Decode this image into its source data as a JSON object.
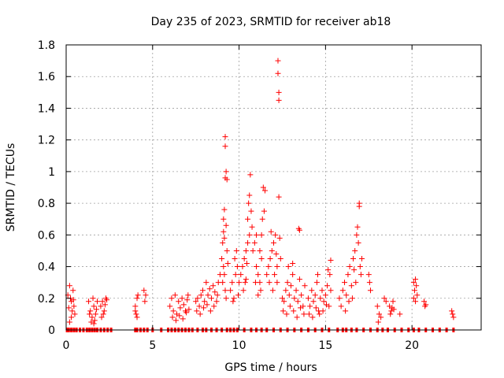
{
  "chart_data": {
    "type": "scatter",
    "title": "Day 235 of 2023, SRMTID for receiver ab18",
    "xlabel": "GPS time / hours",
    "ylabel": "SRMTID / TECUs",
    "xlim": [
      0,
      24
    ],
    "ylim": [
      0,
      1.8
    ],
    "x_ticks": [
      0,
      5,
      10,
      15,
      20
    ],
    "x_tick_labels": [
      "0",
      "5",
      "10",
      "15",
      "20"
    ],
    "y_ticks": [
      0,
      0.2,
      0.4,
      0.6,
      0.8,
      1.0,
      1.2,
      1.4,
      1.6,
      1.8
    ],
    "y_tick_labels": [
      "0",
      "0.2",
      "0.4",
      "0.6",
      "0.8",
      "1",
      "1.2",
      "1.4",
      "1.6",
      "1.8"
    ],
    "grid": true,
    "marker": "plus",
    "color": "#ff0000",
    "points": [
      [
        0.1,
        0.22
      ],
      [
        0.2,
        0.28
      ],
      [
        0.3,
        0.18
      ],
      [
        0.35,
        0.12
      ],
      [
        0.4,
        0.25
      ],
      [
        0.45,
        0.15
      ],
      [
        0.5,
        0.1
      ],
      [
        0.3,
        0.08
      ],
      [
        0.25,
        0.2
      ],
      [
        0.15,
        0.14
      ],
      [
        0.42,
        0.19
      ],
      [
        0.2,
        0.05
      ],
      [
        1.3,
        0.18
      ],
      [
        1.4,
        0.12
      ],
      [
        1.5,
        0.08
      ],
      [
        1.6,
        0.15
      ],
      [
        1.7,
        0.1
      ],
      [
        1.45,
        0.05
      ],
      [
        1.55,
        0.2
      ],
      [
        1.65,
        0.06
      ],
      [
        1.35,
        0.1
      ],
      [
        1.75,
        0.13
      ],
      [
        1.8,
        0.18
      ],
      [
        1.6,
        0.04
      ],
      [
        2.0,
        0.15
      ],
      [
        2.1,
        0.18
      ],
      [
        2.2,
        0.12
      ],
      [
        2.3,
        0.2
      ],
      [
        2.15,
        0.1
      ],
      [
        2.25,
        0.16
      ],
      [
        2.05,
        0.08
      ],
      [
        2.35,
        0.19
      ],
      [
        4.0,
        0.15
      ],
      [
        4.1,
        0.2
      ],
      [
        4.05,
        0.1
      ],
      [
        4.15,
        0.22
      ],
      [
        4.0,
        0.12
      ],
      [
        4.1,
        0.08
      ],
      [
        4.5,
        0.25
      ],
      [
        4.6,
        0.22
      ],
      [
        4.55,
        0.18
      ],
      [
        6.0,
        0.15
      ],
      [
        6.1,
        0.2
      ],
      [
        6.2,
        0.12
      ],
      [
        6.3,
        0.22
      ],
      [
        6.4,
        0.1
      ],
      [
        6.5,
        0.18
      ],
      [
        6.6,
        0.14
      ],
      [
        6.7,
        0.2
      ],
      [
        6.8,
        0.16
      ],
      [
        6.9,
        0.12
      ],
      [
        7.0,
        0.19
      ],
      [
        7.1,
        0.13
      ],
      [
        6.15,
        0.08
      ],
      [
        6.35,
        0.06
      ],
      [
        6.55,
        0.09
      ],
      [
        6.75,
        0.07
      ],
      [
        6.95,
        0.11
      ],
      [
        7.05,
        0.22
      ],
      [
        7.5,
        0.18
      ],
      [
        7.6,
        0.2
      ],
      [
        7.7,
        0.15
      ],
      [
        7.8,
        0.22
      ],
      [
        7.9,
        0.25
      ],
      [
        8.0,
        0.18
      ],
      [
        8.1,
        0.3
      ],
      [
        8.2,
        0.22
      ],
      [
        8.3,
        0.26
      ],
      [
        8.4,
        0.2
      ],
      [
        8.5,
        0.28
      ],
      [
        8.6,
        0.24
      ],
      [
        8.7,
        0.18
      ],
      [
        8.8,
        0.3
      ],
      [
        7.55,
        0.12
      ],
      [
        7.75,
        0.1
      ],
      [
        7.95,
        0.14
      ],
      [
        8.15,
        0.16
      ],
      [
        8.35,
        0.12
      ],
      [
        8.55,
        0.15
      ],
      [
        8.75,
        0.22
      ],
      [
        8.9,
        0.35
      ],
      [
        9.0,
        0.45
      ],
      [
        9.05,
        0.55
      ],
      [
        9.1,
        0.62
      ],
      [
        9.15,
        0.76
      ],
      [
        9.2,
        0.96
      ],
      [
        9.25,
        1.0
      ],
      [
        9.2,
        1.16
      ],
      [
        9.2,
        1.22
      ],
      [
        9.3,
        0.95
      ],
      [
        9.1,
        0.4
      ],
      [
        9.05,
        0.3
      ],
      [
        9.15,
        0.35
      ],
      [
        9.2,
        0.25
      ],
      [
        9.25,
        0.2
      ],
      [
        9.3,
        0.5
      ],
      [
        9.35,
        0.42
      ],
      [
        9.1,
        0.7
      ],
      [
        9.15,
        0.58
      ],
      [
        9.25,
        0.66
      ],
      [
        9.5,
        0.25
      ],
      [
        9.6,
        0.3
      ],
      [
        9.7,
        0.2
      ],
      [
        9.8,
        0.35
      ],
      [
        9.9,
        0.4
      ],
      [
        10.0,
        0.3
      ],
      [
        9.75,
        0.45
      ],
      [
        9.85,
        0.5
      ],
      [
        9.65,
        0.18
      ],
      [
        9.95,
        0.22
      ],
      [
        10.1,
        0.35
      ],
      [
        10.2,
        0.4
      ],
      [
        10.3,
        0.45
      ],
      [
        10.4,
        0.5
      ],
      [
        10.5,
        0.7
      ],
      [
        10.55,
        0.8
      ],
      [
        10.6,
        0.85
      ],
      [
        10.65,
        0.98
      ],
      [
        10.7,
        0.75
      ],
      [
        10.6,
        0.6
      ],
      [
        10.5,
        0.55
      ],
      [
        10.45,
        0.42
      ],
      [
        10.75,
        0.65
      ],
      [
        10.35,
        0.3
      ],
      [
        10.25,
        0.25
      ],
      [
        10.4,
        0.32
      ],
      [
        10.8,
        0.5
      ],
      [
        10.9,
        0.55
      ],
      [
        11.0,
        0.4
      ],
      [
        11.1,
        0.35
      ],
      [
        11.2,
        0.3
      ],
      [
        11.3,
        0.6
      ],
      [
        11.35,
        0.7
      ],
      [
        11.4,
        0.9
      ],
      [
        11.5,
        0.88
      ],
      [
        11.45,
        0.75
      ],
      [
        11.3,
        0.45
      ],
      [
        11.2,
        0.5
      ],
      [
        11.0,
        0.6
      ],
      [
        10.95,
        0.3
      ],
      [
        11.1,
        0.22
      ],
      [
        11.25,
        0.25
      ],
      [
        11.6,
        0.35
      ],
      [
        11.7,
        0.4
      ],
      [
        11.8,
        0.45
      ],
      [
        11.9,
        0.5
      ],
      [
        12.0,
        0.55
      ],
      [
        12.1,
        0.6
      ],
      [
        12.15,
        0.48
      ],
      [
        12.2,
        0.4
      ],
      [
        11.75,
        0.3
      ],
      [
        11.95,
        0.25
      ],
      [
        12.05,
        0.35
      ],
      [
        11.85,
        0.62
      ],
      [
        12.25,
        1.7
      ],
      [
        12.25,
        1.62
      ],
      [
        12.3,
        1.5
      ],
      [
        12.3,
        1.45
      ],
      [
        12.3,
        0.84
      ],
      [
        12.35,
        0.58
      ],
      [
        12.4,
        0.45
      ],
      [
        12.2,
        0.3
      ],
      [
        12.5,
        0.2
      ],
      [
        12.6,
        0.18
      ],
      [
        12.7,
        0.25
      ],
      [
        12.8,
        0.3
      ],
      [
        12.9,
        0.22
      ],
      [
        13.0,
        0.28
      ],
      [
        13.1,
        0.35
      ],
      [
        13.2,
        0.2
      ],
      [
        13.3,
        0.25
      ],
      [
        13.4,
        0.18
      ],
      [
        13.5,
        0.32
      ],
      [
        13.6,
        0.22
      ],
      [
        13.7,
        0.15
      ],
      [
        13.8,
        0.28
      ],
      [
        12.55,
        0.12
      ],
      [
        12.75,
        0.1
      ],
      [
        12.95,
        0.15
      ],
      [
        13.15,
        0.12
      ],
      [
        13.35,
        0.08
      ],
      [
        13.55,
        0.14
      ],
      [
        13.75,
        0.1
      ],
      [
        13.45,
        0.64
      ],
      [
        13.5,
        0.63
      ],
      [
        13.1,
        0.42
      ],
      [
        12.85,
        0.4
      ],
      [
        14.0,
        0.2
      ],
      [
        14.1,
        0.15
      ],
      [
        14.2,
        0.25
      ],
      [
        14.3,
        0.18
      ],
      [
        14.4,
        0.22
      ],
      [
        14.5,
        0.3
      ],
      [
        14.6,
        0.12
      ],
      [
        14.7,
        0.2
      ],
      [
        14.8,
        0.25
      ],
      [
        14.9,
        0.18
      ],
      [
        15.0,
        0.22
      ],
      [
        15.1,
        0.28
      ],
      [
        15.2,
        0.15
      ],
      [
        15.3,
        0.25
      ],
      [
        14.05,
        0.1
      ],
      [
        14.25,
        0.08
      ],
      [
        14.45,
        0.14
      ],
      [
        14.65,
        0.1
      ],
      [
        14.85,
        0.12
      ],
      [
        15.05,
        0.16
      ],
      [
        15.25,
        0.35
      ],
      [
        15.3,
        0.44
      ],
      [
        15.15,
        0.38
      ],
      [
        14.55,
        0.35
      ],
      [
        15.8,
        0.2
      ],
      [
        15.9,
        0.15
      ],
      [
        16.0,
        0.25
      ],
      [
        16.1,
        0.3
      ],
      [
        16.2,
        0.22
      ],
      [
        16.3,
        0.35
      ],
      [
        16.4,
        0.4
      ],
      [
        16.5,
        0.28
      ],
      [
        16.6,
        0.45
      ],
      [
        16.7,
        0.5
      ],
      [
        16.8,
        0.6
      ],
      [
        16.85,
        0.65
      ],
      [
        16.9,
        0.55
      ],
      [
        16.95,
        0.78
      ],
      [
        16.95,
        0.8
      ],
      [
        17.0,
        0.4
      ],
      [
        17.05,
        0.35
      ],
      [
        16.75,
        0.3
      ],
      [
        16.55,
        0.2
      ],
      [
        16.35,
        0.18
      ],
      [
        16.15,
        0.12
      ],
      [
        17.1,
        0.45
      ],
      [
        16.65,
        0.38
      ],
      [
        17.5,
        0.35
      ],
      [
        17.55,
        0.3
      ],
      [
        17.6,
        0.25
      ],
      [
        18.0,
        0.15
      ],
      [
        18.1,
        0.1
      ],
      [
        18.2,
        0.08
      ],
      [
        18.05,
        0.05
      ],
      [
        18.4,
        0.2
      ],
      [
        18.5,
        0.18
      ],
      [
        18.7,
        0.15
      ],
      [
        18.8,
        0.12
      ],
      [
        18.9,
        0.18
      ],
      [
        18.85,
        0.14
      ],
      [
        18.75,
        0.1
      ],
      [
        18.95,
        0.13
      ],
      [
        19.3,
        0.1
      ],
      [
        20.1,
        0.2
      ],
      [
        20.15,
        0.25
      ],
      [
        20.2,
        0.32
      ],
      [
        20.25,
        0.28
      ],
      [
        20.3,
        0.22
      ],
      [
        20.2,
        0.18
      ],
      [
        20.1,
        0.3
      ],
      [
        20.7,
        0.18
      ],
      [
        20.75,
        0.15
      ],
      [
        20.8,
        0.16
      ],
      [
        22.3,
        0.12
      ],
      [
        22.35,
        0.1
      ],
      [
        22.4,
        0.08
      ]
    ],
    "zero_points_x": [
      0.05,
      0.15,
      0.3,
      0.45,
      0.6,
      0.8,
      1.0,
      1.2,
      1.35,
      1.5,
      1.65,
      1.8,
      2.0,
      2.2,
      2.4,
      2.6,
      4.0,
      4.1,
      4.3,
      4.5,
      4.7,
      5.0,
      5.5,
      5.9,
      6.1,
      6.3,
      6.5,
      6.7,
      6.9,
      7.1,
      7.3,
      7.6,
      7.9,
      8.1,
      8.4,
      8.7,
      9.0,
      9.3,
      9.5,
      9.7,
      9.9,
      10.3,
      10.7,
      11.0,
      11.3,
      11.6,
      12.0,
      12.4,
      12.8,
      13.2,
      13.6,
      14.0,
      14.4,
      14.8,
      15.2,
      15.7,
      16.0,
      16.2,
      16.5,
      16.8,
      17.2,
      17.6,
      18.0,
      18.3,
      18.6,
      19.0,
      19.4,
      19.8,
      20.1,
      20.4,
      20.8,
      21.2,
      21.6,
      22.0,
      22.4
    ]
  }
}
